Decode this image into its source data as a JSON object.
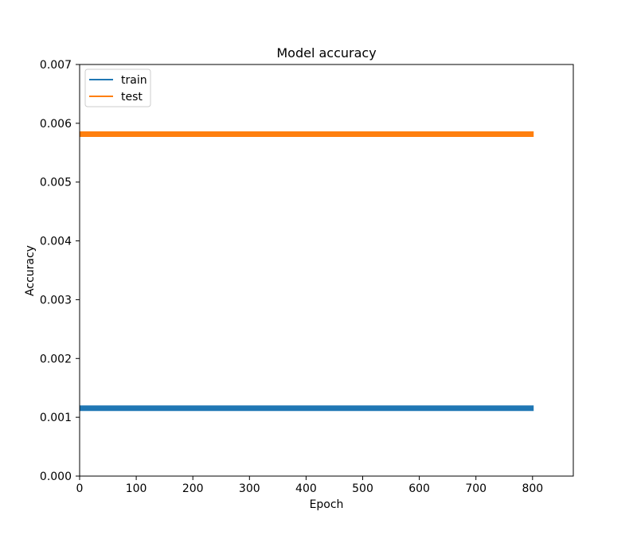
{
  "chart_data": {
    "type": "line",
    "title": "Model accuracy",
    "xlabel": "Epoch",
    "ylabel": "Accuracy",
    "xlim": [
      0,
      872
    ],
    "ylim": [
      0,
      0.007
    ],
    "xticks": [
      0,
      100,
      200,
      300,
      400,
      500,
      600,
      700,
      800
    ],
    "xtick_labels": [
      "0",
      "100",
      "200",
      "300",
      "400",
      "500",
      "600",
      "700",
      "800"
    ],
    "yticks": [
      0,
      0.001,
      0.002,
      0.003,
      0.004,
      0.005,
      0.006,
      0.007
    ],
    "ytick_labels": [
      "0.000",
      "0.001",
      "0.002",
      "0.003",
      "0.004",
      "0.005",
      "0.006",
      "0.007"
    ],
    "grid": false,
    "legend_position": "upper-left",
    "series": [
      {
        "name": "train",
        "color": "#1f77b4",
        "x": [
          0,
          802
        ],
        "y": [
          0.001155,
          0.001155
        ]
      },
      {
        "name": "test",
        "color": "#ff7f0e",
        "x": [
          0,
          802
        ],
        "y": [
          0.005815,
          0.005815
        ]
      }
    ]
  }
}
